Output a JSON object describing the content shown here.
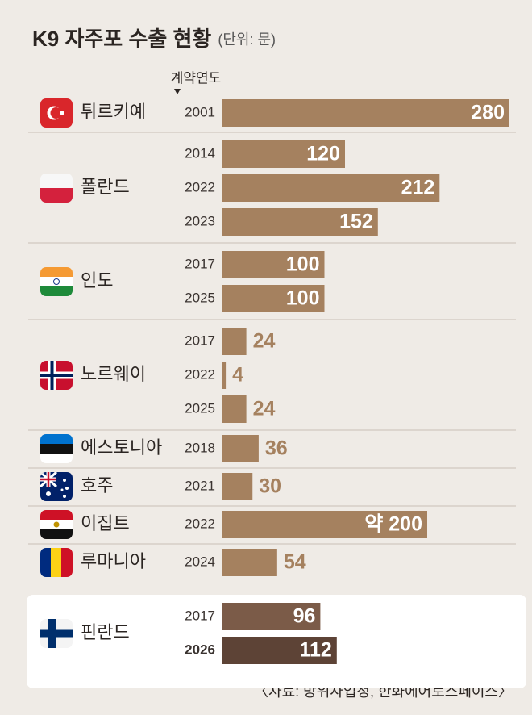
{
  "chart_data": {
    "type": "bar",
    "title": "K9 자주포 수출 현황",
    "subtitle": "(단위: 문)",
    "annotation": "계약연도",
    "source": "〈자료: 방위사업청, 한화에어로스페이스〉",
    "color": "#a5815f",
    "groups": [
      {
        "name": "튀르키예",
        "categories": [
          "2001"
        ],
        "values": [
          280
        ],
        "value_labels": [
          "280"
        ]
      },
      {
        "name": "폴란드",
        "categories": [
          "2014",
          "2022",
          "2023"
        ],
        "values": [
          120,
          212,
          152
        ],
        "value_labels": [
          "120",
          "212",
          "152"
        ]
      },
      {
        "name": "인도",
        "categories": [
          "2017",
          "2025"
        ],
        "values": [
          100,
          100
        ],
        "value_labels": [
          "100",
          "100"
        ]
      },
      {
        "name": "노르웨이",
        "categories": [
          "2017",
          "2022",
          "2025"
        ],
        "values": [
          24,
          4,
          24
        ],
        "value_labels": [
          "24",
          "4",
          "24"
        ]
      },
      {
        "name": "에스토니아",
        "categories": [
          "2018"
        ],
        "values": [
          36
        ],
        "value_labels": [
          "36"
        ]
      },
      {
        "name": "호주",
        "categories": [
          "2021"
        ],
        "values": [
          30
        ],
        "value_labels": [
          "30"
        ]
      },
      {
        "name": "이집트",
        "categories": [
          "2022"
        ],
        "values": [
          200
        ],
        "value_labels": [
          "약 200"
        ]
      },
      {
        "name": "루마니아",
        "categories": [
          "2024"
        ],
        "values": [
          54
        ],
        "value_labels": [
          "54"
        ]
      },
      {
        "name": "핀란드",
        "categories": [
          "2017",
          "2026"
        ],
        "values": [
          96,
          112
        ],
        "value_labels": [
          "96",
          "112"
        ],
        "colors": [
          "#7b5b48",
          "#5d4336"
        ],
        "highlight": true,
        "emphasis": 1
      }
    ]
  }
}
